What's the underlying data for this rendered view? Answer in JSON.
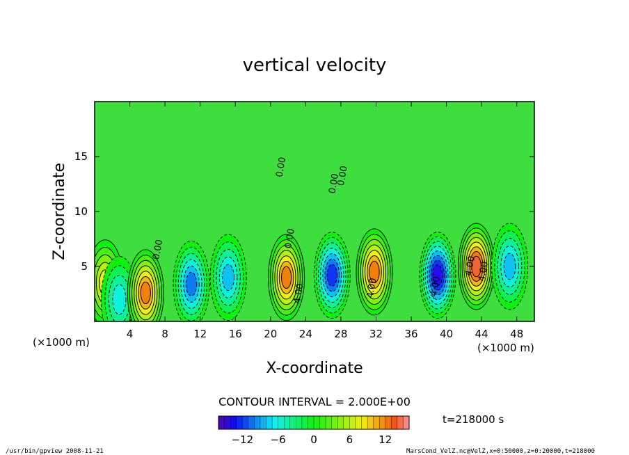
{
  "chart_data": {
    "type": "heatmap",
    "title": "vertical velocity",
    "xlabel": "X-coordinate",
    "ylabel": "Z-coordinate",
    "x_units": "(×1000 m)",
    "y_units": "(×1000 m)",
    "xlim": [
      0,
      50
    ],
    "ylim": [
      0,
      20
    ],
    "x_ticks": [
      "4",
      "8",
      "12",
      "16",
      "20",
      "24",
      "28",
      "32",
      "36",
      "40",
      "44",
      "48"
    ],
    "y_ticks": [
      "5",
      "10",
      "15"
    ],
    "x_tick_values": [
      4,
      8,
      12,
      16,
      20,
      24,
      28,
      32,
      36,
      40,
      44,
      48
    ],
    "y_tick_values": [
      5,
      10,
      15
    ],
    "contour_interval_text": "CONTOUR INTERVAL = 2.000E+00",
    "contour_labels": [
      "0.00",
      "0.00",
      "0.00",
      "0.00",
      "0.00",
      "4.00",
      "4.00",
      "4.00",
      "4.00",
      "-4.00"
    ],
    "time_label": "t=218000 s",
    "colorbar": {
      "range": [
        -16,
        16
      ],
      "tick_values": [
        -12,
        -6,
        0,
        6,
        12
      ],
      "tick_labels": [
        "−12",
        "−6",
        "0",
        "6",
        "12"
      ]
    },
    "cells": [
      {
        "x": 1.2,
        "z": 3.5,
        "w": 7
      },
      {
        "x": 2.8,
        "z": 2.0,
        "w": -5
      },
      {
        "x": 5.8,
        "z": 2.6,
        "w": 12
      },
      {
        "x": 11.0,
        "z": 3.4,
        "w": -9
      },
      {
        "x": 15.2,
        "z": 4.0,
        "w": -7
      },
      {
        "x": 21.8,
        "z": 4.0,
        "w": 11
      },
      {
        "x": 27.0,
        "z": 4.2,
        "w": -12
      },
      {
        "x": 31.8,
        "z": 4.5,
        "w": 12
      },
      {
        "x": 39.0,
        "z": 4.2,
        "w": -13
      },
      {
        "x": 43.4,
        "z": 5.0,
        "w": 14
      },
      {
        "x": 47.2,
        "z": 5.0,
        "w": -7
      }
    ]
  },
  "footer": {
    "left": "/usr/bin/gpview  2008-11-21",
    "right": "MarsCond_VelZ.nc@VelZ,x=0:50000,z=0:20000,t=218000"
  }
}
